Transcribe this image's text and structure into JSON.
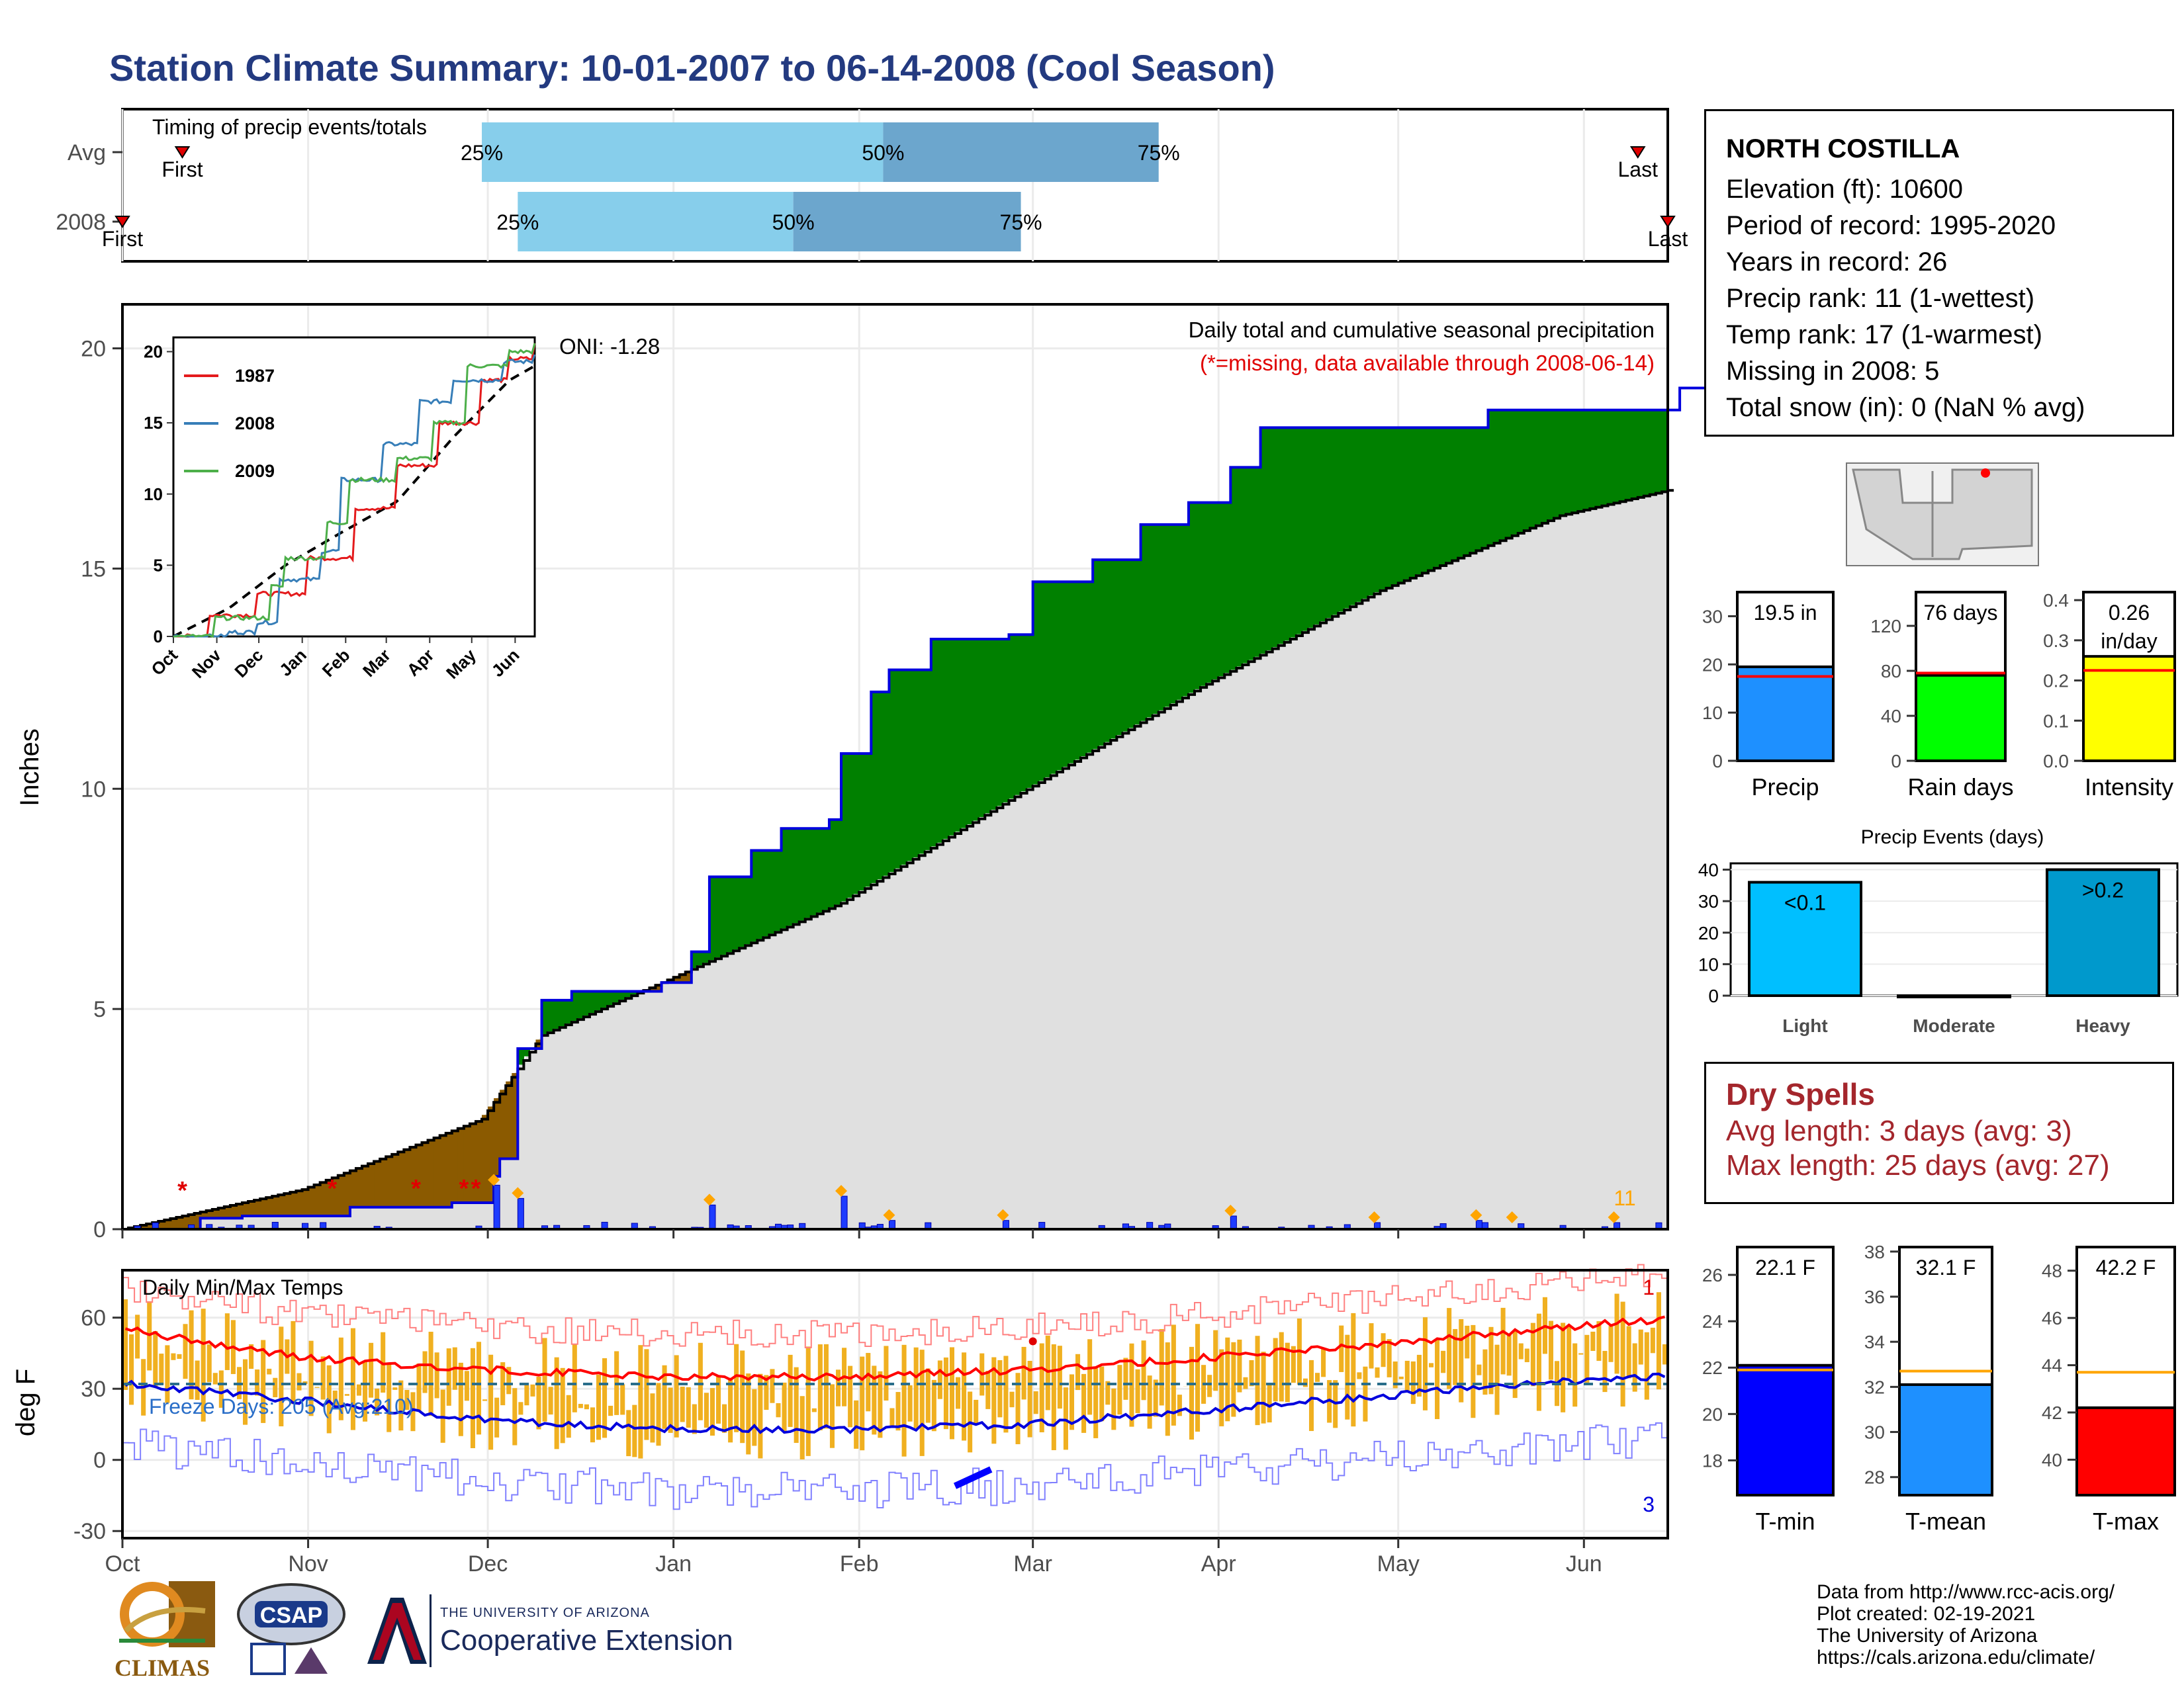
{
  "title": "Station Climate Summary: 10-01-2007 to 06-14-2008 (Cool Season)",
  "station": {
    "name": "NORTH COSTILLA",
    "lines": [
      "Elevation (ft): 10600",
      "Period of record: 1995-2020",
      "Years in record: 26",
      "Precip rank: 11 (1-wettest)",
      "Temp rank: 17 (1-warmest)",
      "Missing in 2008: 5",
      "Total snow (in): 0 (NaN % avg)"
    ]
  },
  "timing": {
    "label": "Timing of precip events/totals",
    "rows": [
      {
        "name": "Avg",
        "first": "First",
        "last": "Last",
        "p25": "25%",
        "p50": "50%",
        "p75": "75%",
        "first_day": 10,
        "last_day": 253,
        "d25": 60,
        "d50": 127,
        "d75": 173
      },
      {
        "name": "2008",
        "first": "First",
        "last": "Last",
        "p25": "25%",
        "p50": "50%",
        "p75": "75%",
        "first_day": 0,
        "last_day": 258,
        "d25": 66,
        "d50": 112,
        "d75": 150
      }
    ],
    "colors": {
      "light": "#87ceeb",
      "dark": "#6ca6cd",
      "marker": "#e00000"
    }
  },
  "precip_panel": {
    "ylabel": "Inches",
    "yticks": [
      0,
      5,
      10,
      15,
      20
    ],
    "header": "Daily total and cumulative seasonal precipitation",
    "missing_note": "(*=missing, data available through 2008-06-14)",
    "oni": "ONI: -1.28",
    "count_label": "11",
    "colors": {
      "above": "#008000",
      "below": "#8b5a00",
      "avg_fill": "#e0e0e0",
      "cum_line": "#0000dd",
      "missing": "#e00000",
      "marker": "#ffa500"
    }
  },
  "inset": {
    "yticks": [
      0,
      5,
      10,
      15,
      20
    ],
    "xticks": [
      "Oct",
      "Nov",
      "Dec",
      "Jan",
      "Feb",
      "Mar",
      "Apr",
      "May",
      "Jun"
    ],
    "legend": [
      {
        "name": "1987",
        "color": "#e41a1c"
      },
      {
        "name": "2008",
        "color": "#377eb8"
      },
      {
        "name": "2009",
        "color": "#4daf4a"
      }
    ]
  },
  "temp_panel": {
    "ylabel": "deg F",
    "label": "Daily Min/Max Temps",
    "freeze": "Freeze Days: 205 (Avg:210)",
    "count_top": "1",
    "count_bottom": "3",
    "yticks": [
      -30,
      0,
      30,
      60
    ],
    "xticks": [
      "Oct",
      "Nov",
      "Dec",
      "Jan",
      "Feb",
      "Mar",
      "Apr",
      "May",
      "Jun"
    ],
    "colors": {
      "bars": "#f0b020",
      "max": "#ff0000",
      "min": "#0000dd",
      "freeze": "#2a6e8a"
    }
  },
  "bar_panels": {
    "precip": {
      "label": "Precip",
      "value": 19.5,
      "avg": 17.5,
      "text": "19.5 in",
      "ymax": 35,
      "yticks": [
        0,
        10,
        20,
        30
      ],
      "color": "#1e90ff"
    },
    "rain": {
      "label": "Rain days",
      "value": 76,
      "avg": 78,
      "text": "76 days",
      "ymax": 150,
      "yticks": [
        0,
        40,
        80,
        120
      ],
      "color": "#00ff00"
    },
    "intensity": {
      "label": "Intensity",
      "value": 0.26,
      "avg": 0.225,
      "text": "0.26 in/day",
      "ymax": 0.42,
      "yticks": [
        "0.0",
        "0.1",
        "0.2",
        "0.3",
        "0.4"
      ],
      "color": "#ffff00"
    }
  },
  "events": {
    "title": "Precip Events (days)",
    "categories": [
      "Light",
      "Moderate",
      "Heavy"
    ],
    "values": [
      36,
      0,
      40
    ],
    "labels": [
      "<0.1",
      "",
      ">0.2"
    ],
    "yticks": [
      0,
      10,
      20,
      30,
      40
    ],
    "colors": [
      "#00bfff",
      "#00bfff",
      "#0099cc"
    ]
  },
  "dry_spells": {
    "title": "Dry Spells",
    "avg": "Avg length: 3 days (avg: 3)",
    "max": "Max length: 25 days (avg: 27)"
  },
  "temp_bars": {
    "tmin": {
      "label": "T-min",
      "value": 22.1,
      "avg": 21.9,
      "text": "22.1 F",
      "range": [
        16.5,
        27.2
      ],
      "yticks": [
        18,
        20,
        22,
        24,
        26
      ],
      "color": "#0000ff"
    },
    "tmean": {
      "label": "T-mean",
      "value": 32.1,
      "avg": 32.7,
      "text": "32.1 F",
      "range": [
        27.2,
        38.2
      ],
      "yticks": [
        28,
        30,
        32,
        34,
        36,
        38
      ],
      "color": "#1e90ff"
    },
    "tmax": {
      "label": "T-max",
      "value": 42.2,
      "avg": 43.7,
      "text": "42.2 F",
      "range": [
        38.5,
        49.0
      ],
      "yticks": [
        40,
        42,
        44,
        46,
        48
      ],
      "color": "#ff0000"
    }
  },
  "credits": [
    "Data from http://www.rcc-acis.org/",
    "Plot created: 02-19-2021",
    "The University of Arizona",
    "https://cals.arizona.edu/climate/"
  ],
  "logos": {
    "climas": "CLIMAS",
    "csap": "CSAP",
    "ua_small": "THE UNIVERSITY OF ARIZONA",
    "ua_big": "Cooperative Extension"
  },
  "chart_data": [
    {
      "type": "area",
      "title": "Daily total and cumulative seasonal precipitation",
      "ylabel": "Inches",
      "x": [
        "Oct",
        "Nov",
        "Dec",
        "Jan",
        "Feb",
        "Mar",
        "Apr",
        "May",
        "Jun"
      ],
      "ylim": [
        0,
        21
      ],
      "series": [
        {
          "name": "2008",
          "cumulative_points": [
            [
              0,
              0
            ],
            [
              13,
              0.25
            ],
            [
              20,
              0.3
            ],
            [
              38,
              0.5
            ],
            [
              55,
              0.6
            ],
            [
              62,
              1.2
            ],
            [
              63,
              1.6
            ],
            [
              66,
              4.1
            ],
            [
              70,
              5.2
            ],
            [
              75,
              5.4
            ],
            [
              90,
              5.6
            ],
            [
              95,
              6.3
            ],
            [
              98,
              8.0
            ],
            [
              105,
              8.6
            ],
            [
              110,
              9.1
            ],
            [
              118,
              9.3
            ],
            [
              120,
              10.8
            ],
            [
              125,
              12.2
            ],
            [
              128,
              12.7
            ],
            [
              135,
              13.4
            ],
            [
              148,
              13.5
            ],
            [
              152,
              14.7
            ],
            [
              162,
              15.2
            ],
            [
              170,
              16.0
            ],
            [
              178,
              16.5
            ],
            [
              185,
              17.3
            ],
            [
              190,
              18.2
            ],
            [
              200,
              18.2
            ],
            [
              228,
              18.6
            ],
            [
              260,
              19.1
            ],
            [
              265,
              19.5
            ]
          ]
        },
        {
          "name": "avg",
          "cumulative_points": [
            [
              0,
              0
            ],
            [
              30,
              0.9
            ],
            [
              60,
              2.5
            ],
            [
              70,
              4.4
            ],
            [
              90,
              5.6
            ],
            [
              120,
              7.4
            ],
            [
              150,
              9.9
            ],
            [
              180,
              12.3
            ],
            [
              210,
              14.5
            ],
            [
              240,
              16.2
            ],
            [
              265,
              17.0
            ]
          ]
        }
      ]
    },
    {
      "type": "line",
      "title": "Daily Min/Max Temps",
      "ylabel": "deg F",
      "ylim": [
        -30,
        80
      ],
      "series": [
        {
          "name": "avg max",
          "points": [
            [
              0,
              55
            ],
            [
              30,
              43
            ],
            [
              60,
              38
            ],
            [
              90,
              35
            ],
            [
              120,
              35
            ],
            [
              150,
              38
            ],
            [
              180,
              43
            ],
            [
              210,
              49
            ],
            [
              240,
              56
            ],
            [
              265,
              61
            ]
          ]
        },
        {
          "name": "avg min",
          "points": [
            [
              0,
              32
            ],
            [
              30,
              25
            ],
            [
              60,
              17
            ],
            [
              90,
              13
            ],
            [
              120,
              13
            ],
            [
              150,
              15
            ],
            [
              180,
              21
            ],
            [
              210,
              27
            ],
            [
              240,
              33
            ],
            [
              265,
              36
            ]
          ]
        }
      ]
    }
  ]
}
